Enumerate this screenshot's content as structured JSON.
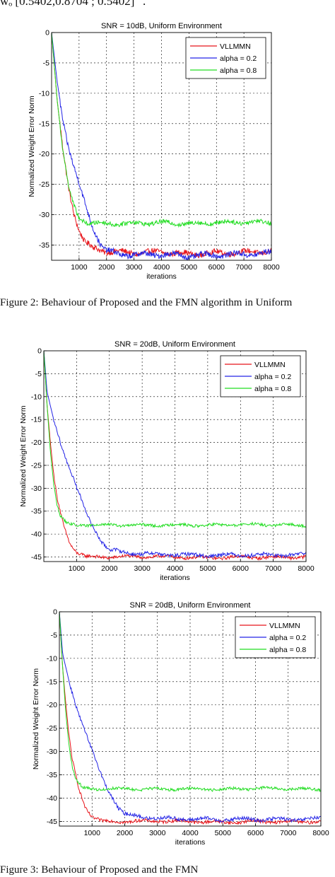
{
  "header_equation": "wₒ  [0.5402,0.8704 ; 0.5402] ' .",
  "captions": {
    "figure2": "Figure 2: Behaviour of Proposed and the FMN algorithm in Uniform",
    "figure3": "Figure 3: Behaviour of Proposed and the FMN"
  },
  "chart_data": [
    {
      "type": "line",
      "title": "SNR = 10dB, Uniform Environment",
      "xlabel": "iterations",
      "ylabel": "Normalized Weight Error Norm",
      "xlim": [
        0,
        8000
      ],
      "ylim": [
        -37.5,
        0
      ],
      "xticks": [
        1000,
        2000,
        3000,
        4000,
        5000,
        6000,
        7000,
        8000
      ],
      "yticks": [
        0,
        -5,
        -10,
        -15,
        -20,
        -25,
        -30,
        -35
      ],
      "grid": true,
      "legend_position": "top-right",
      "series": [
        {
          "name": "VLLMMN",
          "color": "#e8141a",
          "x": [
            0,
            200,
            400,
            600,
            800,
            1000,
            1200,
            1500,
            2000,
            3000,
            4000,
            5000,
            6000,
            7000,
            8000
          ],
          "y": [
            0,
            -11,
            -19,
            -25,
            -29.5,
            -32.5,
            -34.5,
            -35.5,
            -36,
            -36.3,
            -36.1,
            -36.5,
            -36.3,
            -36.2,
            -36
          ],
          "noise": 0.45
        },
        {
          "name": "alpha = 0.2",
          "color": "#2424e6",
          "x": [
            0,
            200,
            400,
            600,
            800,
            1000,
            1200,
            1500,
            1800,
            2000,
            2500,
            3000,
            4000,
            5000,
            6000,
            7000,
            8000
          ],
          "y": [
            0,
            -8,
            -14,
            -18.5,
            -22,
            -25,
            -28,
            -32,
            -35,
            -36,
            -36.5,
            -36.6,
            -36.5,
            -36.8,
            -36.6,
            -36.5,
            -36.3
          ],
          "noise": 0.45
        },
        {
          "name": "alpha = 0.8",
          "color": "#22dd22",
          "x": [
            0,
            200,
            400,
            600,
            800,
            1000,
            1300,
            2000,
            3000,
            4000,
            5000,
            6000,
            7000,
            8000
          ],
          "y": [
            0,
            -11,
            -19,
            -25,
            -28.5,
            -30.5,
            -31.3,
            -31.5,
            -31.4,
            -31.3,
            -31.5,
            -31.3,
            -31.2,
            -31.2
          ],
          "noise": 0.35
        }
      ]
    },
    {
      "type": "line",
      "title": "SNR = 20dB, Uniform Environment",
      "xlabel": "iterations",
      "ylabel": "Normalized Weight Error Norm",
      "xlim": [
        0,
        8000
      ],
      "ylim": [
        -46,
        0
      ],
      "xticks": [
        1000,
        2000,
        3000,
        4000,
        5000,
        6000,
        7000,
        8000
      ],
      "yticks": [
        0,
        -5,
        -10,
        -15,
        -20,
        -25,
        -30,
        -35,
        -40,
        -45
      ],
      "grid": true,
      "legend_position": "top-right",
      "series": [
        {
          "name": "VLLMMN",
          "color": "#e8141a",
          "x": [
            0,
            100,
            200,
            300,
            400,
            600,
            800,
            1000,
            1300,
            2000,
            3000,
            4000,
            5000,
            6000,
            7000,
            8000
          ],
          "y": [
            0,
            -12,
            -20,
            -27,
            -32,
            -38,
            -42,
            -44,
            -45,
            -45,
            -44.9,
            -45,
            -45.2,
            -45,
            -45.1,
            -45
          ],
          "noise": 0.35
        },
        {
          "name": "alpha = 0.2",
          "color": "#2424e6",
          "x": [
            0,
            100,
            300,
            600,
            1000,
            1400,
            1800,
            2000,
            2500,
            3000,
            4000,
            5000,
            6000,
            7000,
            8000
          ],
          "y": [
            0,
            -9,
            -15,
            -22,
            -30,
            -37,
            -42,
            -43.5,
            -44,
            -44.3,
            -44.5,
            -44.6,
            -44.5,
            -44.6,
            -44.4
          ],
          "noise": 0.4
        },
        {
          "name": "alpha = 0.8",
          "color": "#22dd22",
          "x": [
            0,
            100,
            200,
            300,
            400,
            500,
            700,
            1000,
            2000,
            3000,
            4000,
            5000,
            6000,
            7000,
            8000
          ],
          "y": [
            0,
            -12,
            -22,
            -29,
            -33.5,
            -36,
            -37.8,
            -38,
            -38,
            -38.1,
            -38,
            -38.1,
            -37.9,
            -38,
            -38.1
          ],
          "noise": 0.3
        }
      ]
    },
    {
      "type": "line",
      "title": "SNR = 20dB, Uniform Environment",
      "xlabel": "iterations",
      "ylabel": "Normalized Weight Error Norm",
      "xlim": [
        0,
        8000
      ],
      "ylim": [
        -46,
        0
      ],
      "xticks": [
        1000,
        2000,
        3000,
        4000,
        5000,
        6000,
        7000,
        8000
      ],
      "yticks": [
        0,
        -5,
        -10,
        -15,
        -20,
        -25,
        -30,
        -35,
        -40,
        -45
      ],
      "grid": true,
      "legend_position": "top-right",
      "series": [
        {
          "name": "VLLMMN",
          "color": "#e8141a",
          "x": [
            0,
            100,
            200,
            300,
            400,
            600,
            800,
            1000,
            1300,
            2000,
            3000,
            4000,
            5000,
            6000,
            7000,
            8000
          ],
          "y": [
            0,
            -12,
            -20,
            -27,
            -32,
            -38,
            -42,
            -44,
            -45,
            -45,
            -44.9,
            -45,
            -45.2,
            -45,
            -45.1,
            -45
          ],
          "noise": 0.35
        },
        {
          "name": "alpha = 0.2",
          "color": "#2424e6",
          "x": [
            0,
            100,
            300,
            600,
            1000,
            1400,
            1800,
            2000,
            2500,
            3000,
            4000,
            5000,
            6000,
            7000,
            8000
          ],
          "y": [
            0,
            -9,
            -15,
            -22,
            -30,
            -37,
            -42,
            -43.5,
            -44,
            -44.3,
            -44.5,
            -44.6,
            -44.5,
            -44.6,
            -44.4
          ],
          "noise": 0.4
        },
        {
          "name": "alpha = 0.8",
          "color": "#22dd22",
          "x": [
            0,
            100,
            200,
            300,
            400,
            500,
            700,
            1000,
            2000,
            3000,
            4000,
            5000,
            6000,
            7000,
            8000
          ],
          "y": [
            0,
            -12,
            -22,
            -29,
            -33.5,
            -36,
            -37.8,
            -38,
            -38,
            -38.1,
            -38,
            -38.1,
            -37.9,
            -38,
            -38.1
          ],
          "noise": 0.3
        }
      ]
    }
  ]
}
